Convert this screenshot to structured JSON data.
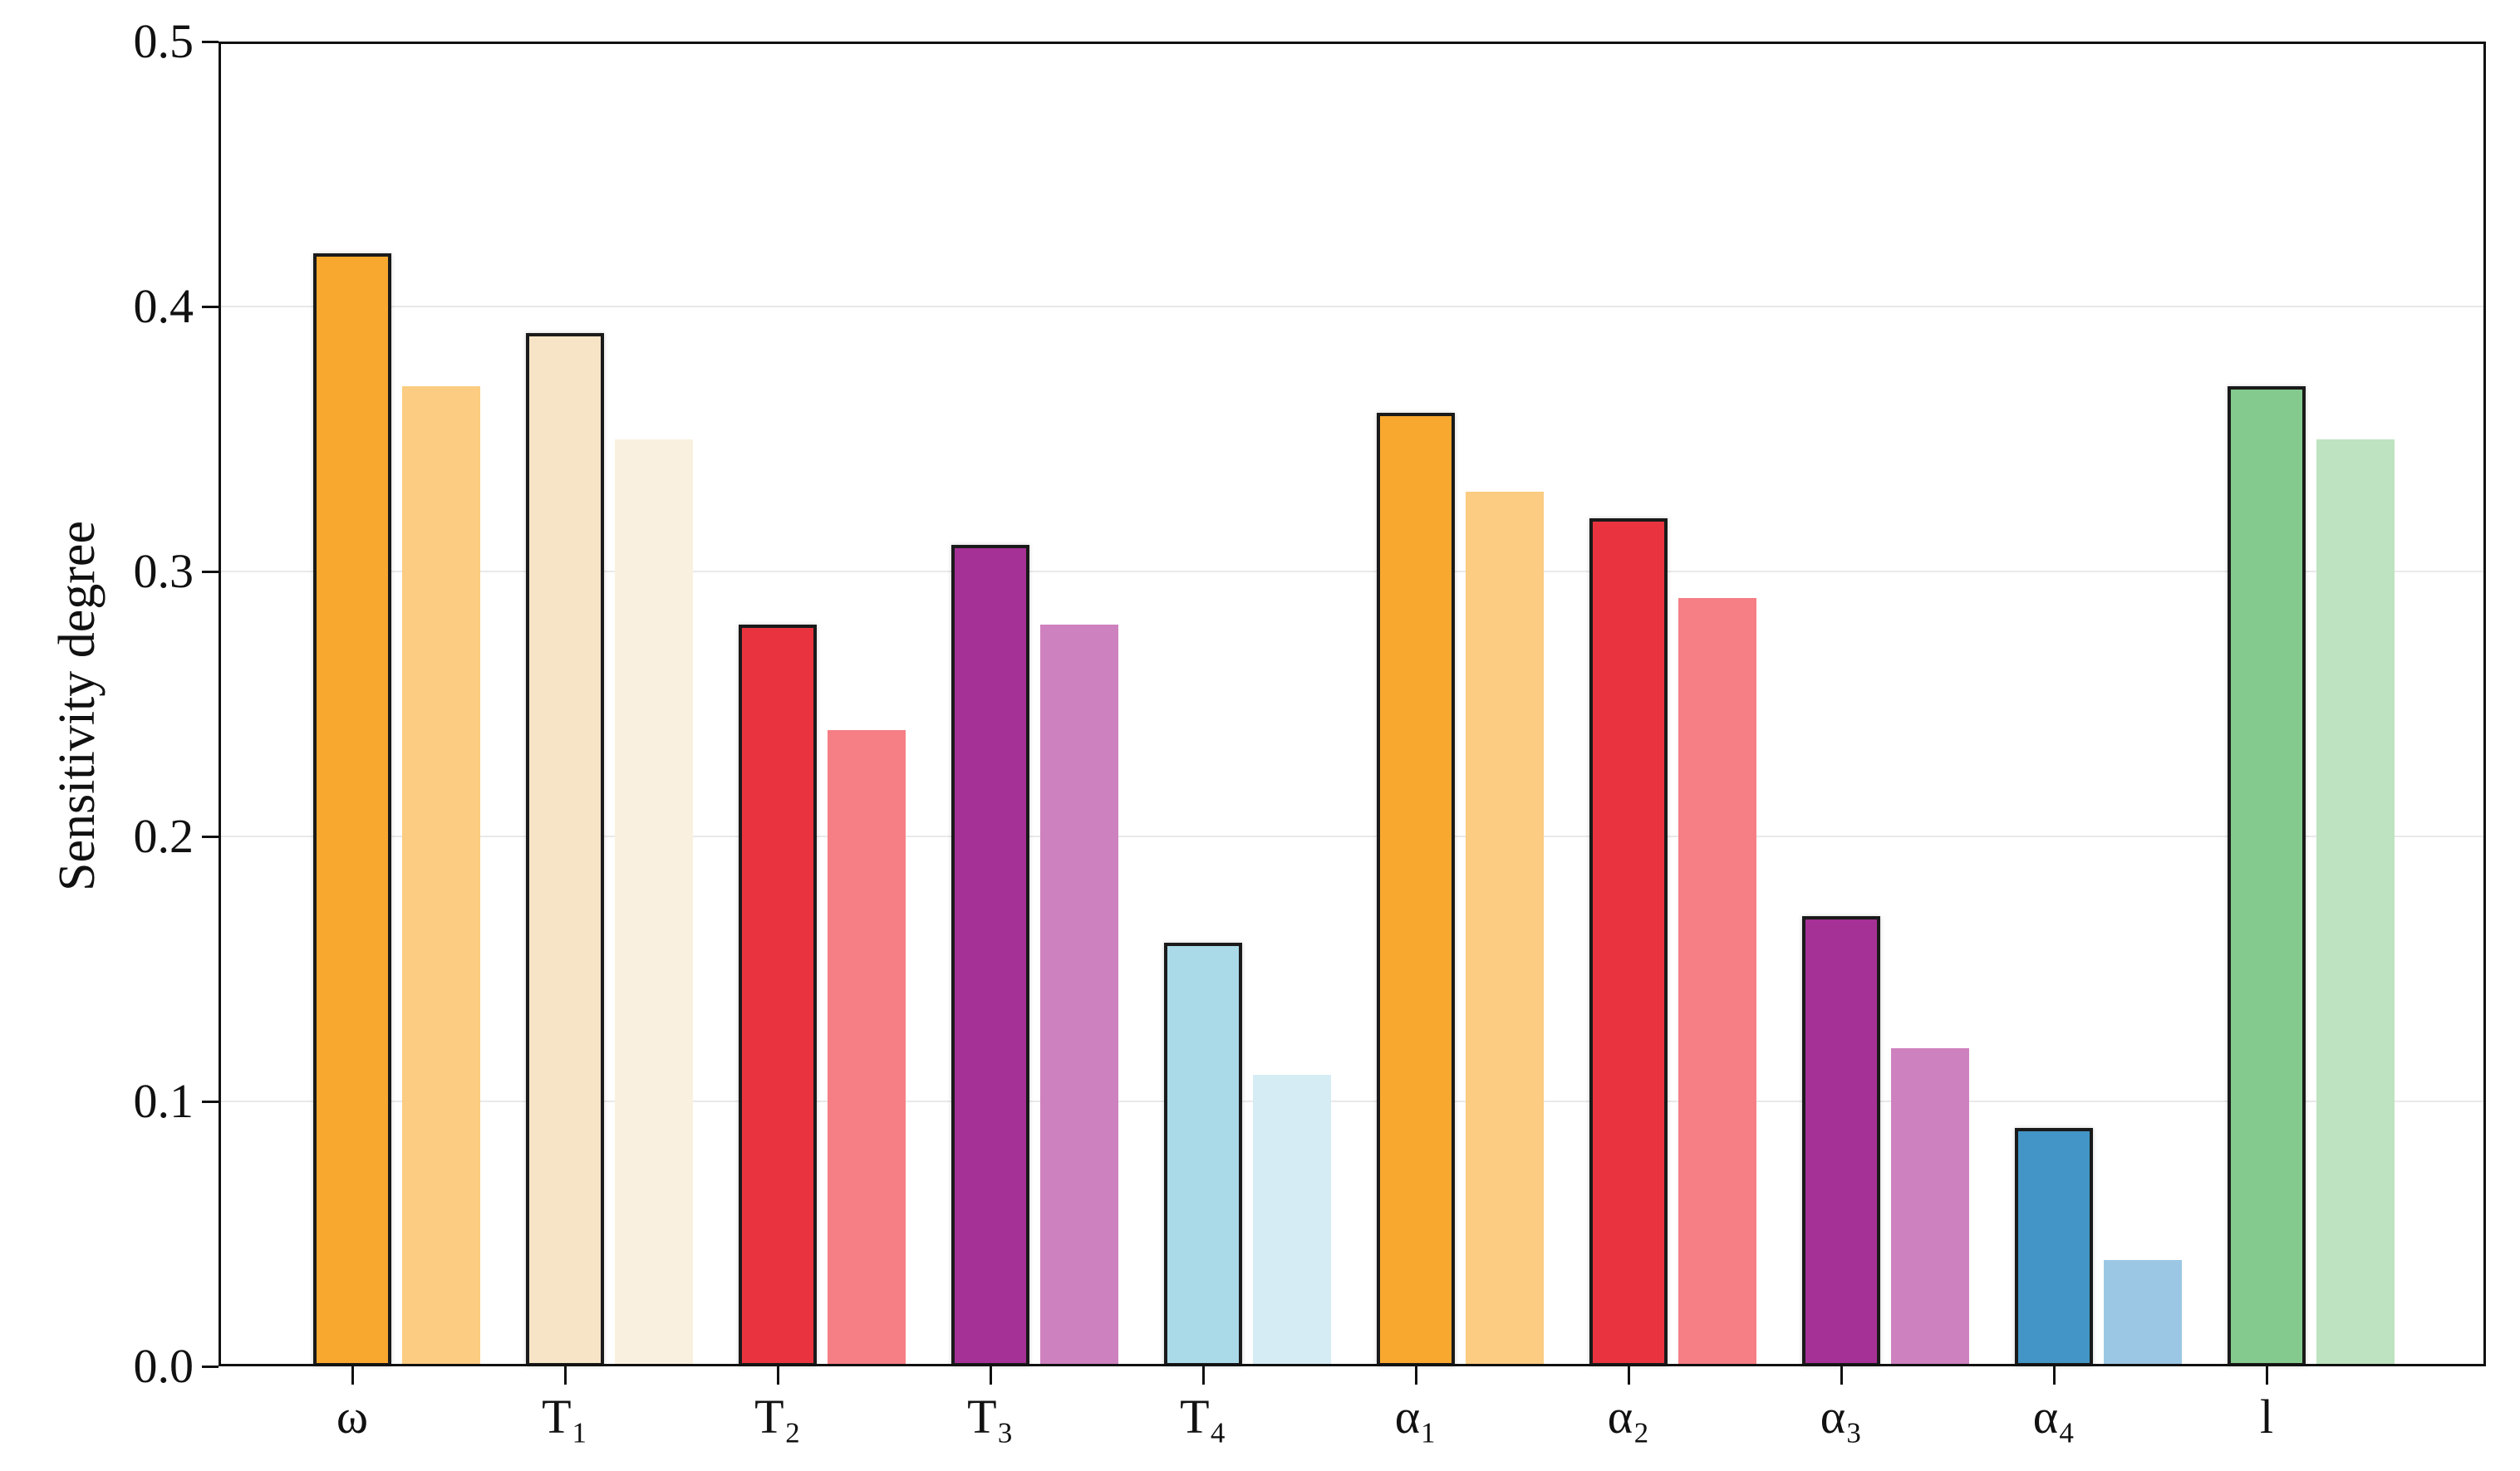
{
  "chart_data": {
    "type": "bar",
    "title": "",
    "xlabel": "",
    "ylabel": "Sensitivity degree",
    "ylim": [
      0,
      0.5
    ],
    "yticks": [
      0.0,
      0.1,
      0.2,
      0.3,
      0.4,
      0.5
    ],
    "ytick_labels": [
      "0.0",
      "0.1",
      "0.2",
      "0.3",
      "0.4",
      "0.5"
    ],
    "grid": "horizontal-light",
    "legend_position": "none",
    "frame": "full-box",
    "categories": [
      "ω",
      "T₁",
      "T₂",
      "T₃",
      "T₄",
      "α₁",
      "α₂",
      "α₃",
      "α₄",
      "l"
    ],
    "series": [
      {
        "name": "primary",
        "style": "filled-with-black-edge",
        "values": [
          0.42,
          0.39,
          0.28,
          0.31,
          0.16,
          0.36,
          0.32,
          0.17,
          0.09,
          0.37
        ]
      },
      {
        "name": "secondary",
        "style": "filled-light-no-edge",
        "values": [
          0.37,
          0.35,
          0.24,
          0.28,
          0.11,
          0.33,
          0.29,
          0.12,
          0.04,
          0.35
        ]
      }
    ],
    "colors": {
      "edge": "#1a1a1a",
      "grid": "#e9e9e9",
      "primary_fills": [
        "#F9A82F",
        "#F7E3C5",
        "#E9343F",
        "#A53196",
        "#AADAE8",
        "#F9A82F",
        "#E9343F",
        "#A53196",
        "#4295C6",
        "#84CA8E"
      ],
      "secondary_fills": [
        "#FBCC81",
        "#FAF0DF",
        "#F57F85",
        "#CE81BF",
        "#D5ECF5",
        "#FBCC81",
        "#F57F85",
        "#CE81BF",
        "#9BC7E4",
        "#BEE3C0"
      ]
    }
  }
}
